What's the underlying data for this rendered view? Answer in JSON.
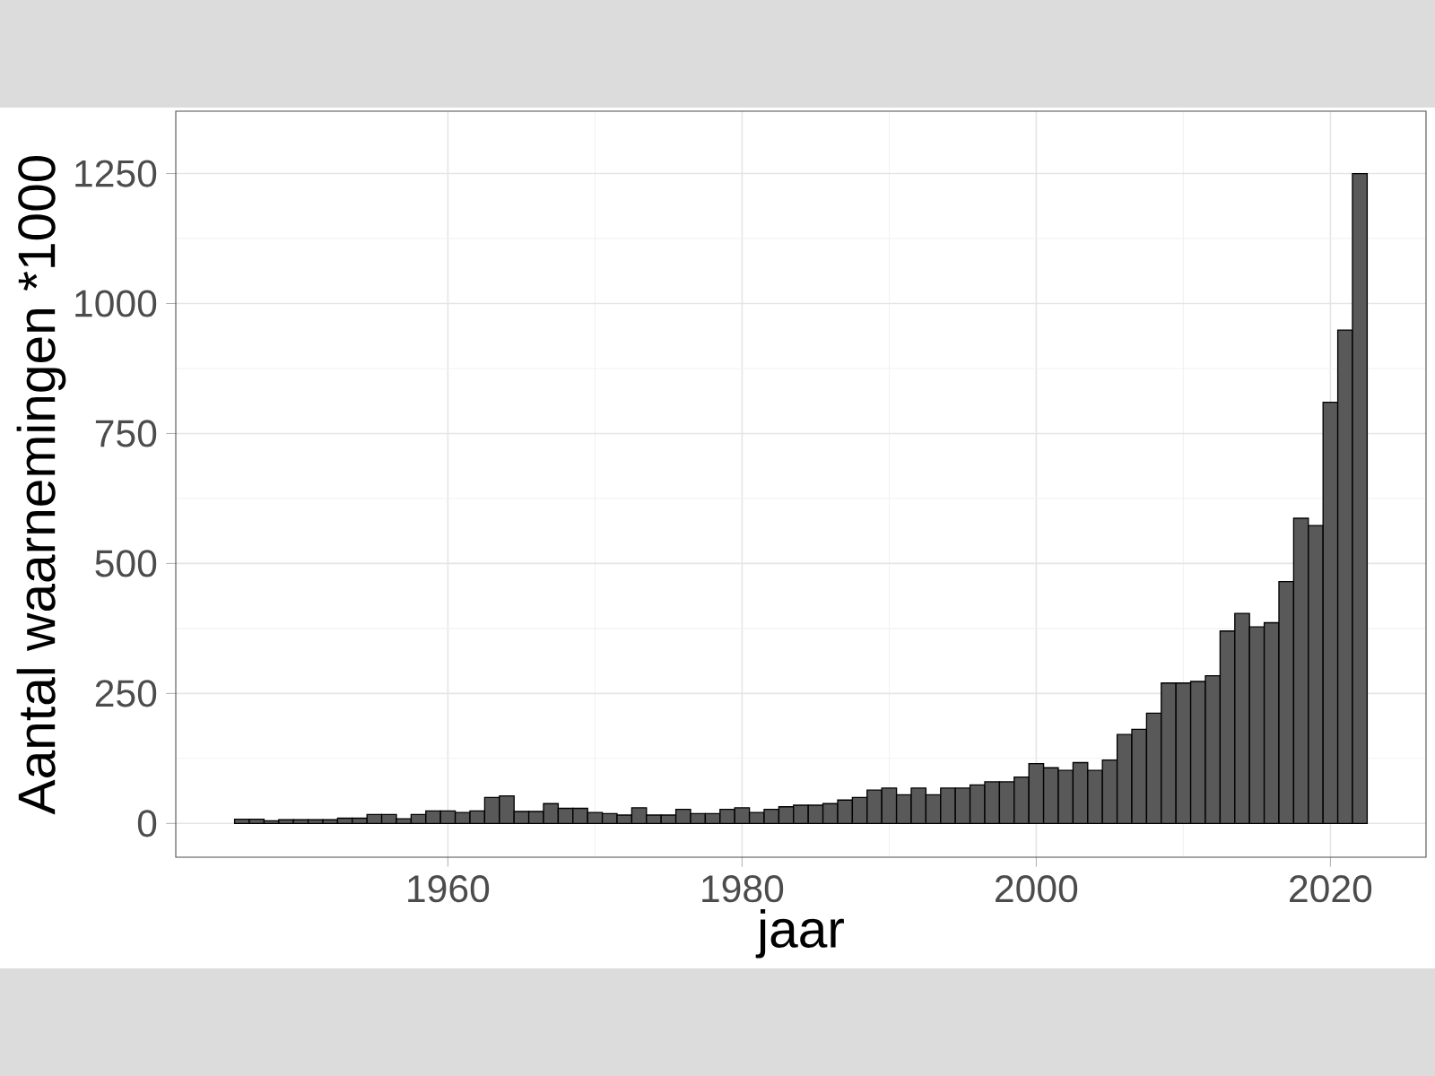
{
  "chart_data": {
    "type": "bar",
    "xlabel": "jaar",
    "ylabel": "Aantal waarnemingen *1000",
    "x": [
      1946,
      1947,
      1948,
      1949,
      1950,
      1951,
      1952,
      1953,
      1954,
      1955,
      1956,
      1957,
      1958,
      1959,
      1960,
      1961,
      1962,
      1963,
      1964,
      1965,
      1966,
      1967,
      1968,
      1969,
      1970,
      1971,
      1972,
      1973,
      1974,
      1975,
      1976,
      1977,
      1978,
      1979,
      1980,
      1981,
      1982,
      1983,
      1984,
      1985,
      1986,
      1987,
      1988,
      1989,
      1990,
      1991,
      1992,
      1993,
      1994,
      1995,
      1996,
      1997,
      1998,
      1999,
      2000,
      2001,
      2002,
      2003,
      2004,
      2005,
      2006,
      2007,
      2008,
      2009,
      2010,
      2011,
      2012,
      2013,
      2014,
      2015,
      2016,
      2017,
      2018,
      2019,
      2020,
      2021,
      2022
    ],
    "values": [
      8,
      8,
      5,
      7,
      7,
      7,
      7,
      10,
      10,
      17,
      17,
      9,
      17,
      24,
      24,
      21,
      24,
      50,
      53,
      23,
      23,
      38,
      29,
      29,
      21,
      19,
      16,
      30,
      16,
      16,
      27,
      19,
      19,
      27,
      30,
      21,
      27,
      32,
      35,
      35,
      38,
      45,
      50,
      64,
      68,
      55,
      68,
      55,
      68,
      68,
      74,
      80,
      80,
      89,
      115,
      107,
      102,
      117,
      102,
      122,
      171,
      181,
      212,
      270,
      270,
      273,
      284,
      370,
      404,
      378,
      386,
      465,
      587,
      573,
      810,
      949,
      1250
    ],
    "color": "#595959",
    "xlim": [
      1941.5,
      2026.5
    ],
    "ylim": [
      -65,
      1370
    ],
    "xticks": [
      1960,
      1980,
      2000,
      2020
    ],
    "yticks": [
      0,
      250,
      500,
      750,
      1000,
      1250
    ],
    "grid": true
  }
}
